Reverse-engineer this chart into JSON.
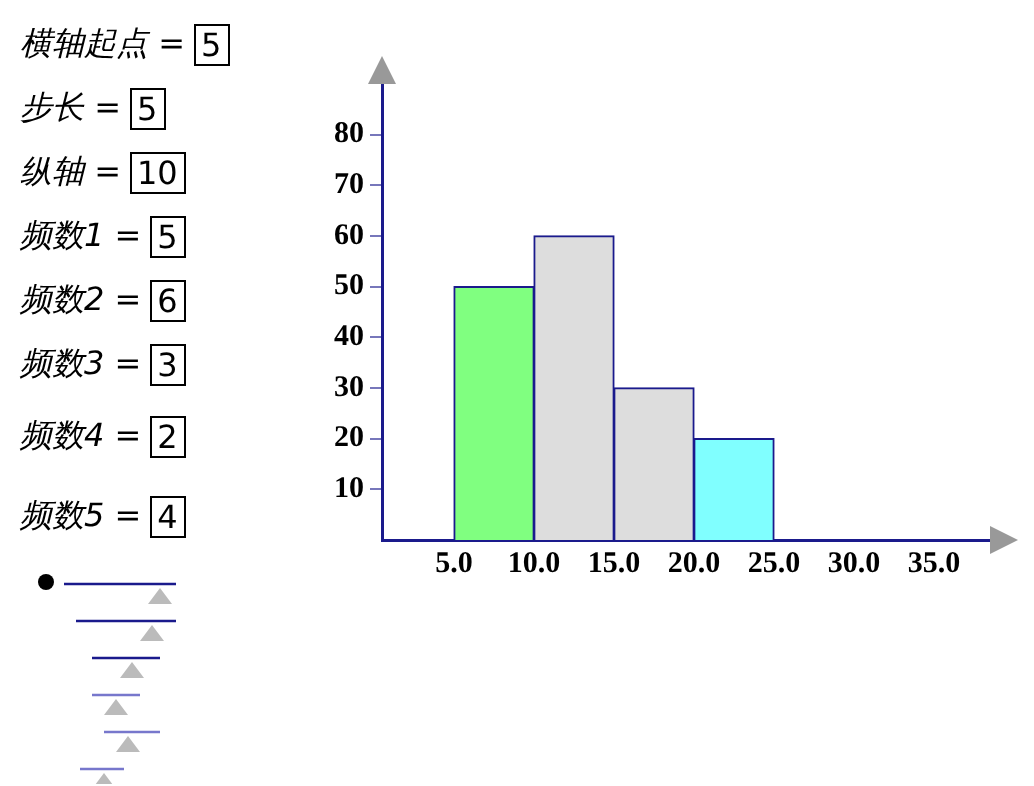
{
  "chart_data": [
    {
      "type": "other",
      "annotations": [
        "横轴起点 = 5",
        "步长 = 5",
        "纵轴 = 10",
        "频数1 = 5",
        "频数2 = 6",
        "频数3 = 3",
        "频数4 = 2",
        "频数5 = 4"
      ]
    },
    {
      "type": "histogram",
      "bins": [
        5,
        10,
        15,
        20,
        25
      ],
      "values": [
        50,
        60,
        30,
        20
      ],
      "colors": [
        "#80ff80",
        "#dddddd",
        "#dddddd",
        "#80ffff"
      ],
      "xlim": [
        0.5,
        38.5
      ],
      "xticks": [
        {
          "value": 5,
          "label": "5.0"
        },
        {
          "value": 10,
          "label": "10.0"
        },
        {
          "value": 15,
          "label": "15.0"
        },
        {
          "value": 20,
          "label": "20.0"
        },
        {
          "value": 25,
          "label": "25.0"
        },
        {
          "value": 30,
          "label": "30.0"
        },
        {
          "value": 35,
          "label": "35.0"
        }
      ],
      "ylim": [
        0,
        90
      ],
      "yticks": [
        10,
        20,
        30,
        40,
        50,
        60,
        70,
        80
      ],
      "grid": false
    }
  ]
}
